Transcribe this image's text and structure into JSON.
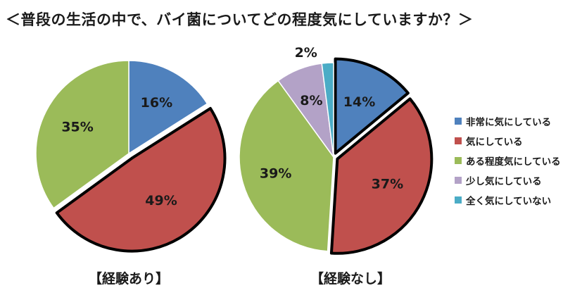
{
  "title": "＜普段の生活の中で、バイ菌についてどの程度気にしていますか？＞",
  "legend": [
    {
      "label": "非常に気にしている",
      "color": "#4f81bd"
    },
    {
      "label": "気にしている",
      "color": "#c0504d"
    },
    {
      "label": "ある程度気にしている",
      "color": "#9bbb59"
    },
    {
      "label": "少し気にしている",
      "color": "#b3a2c7"
    },
    {
      "label": "全く気にしていない",
      "color": "#4bacc6"
    }
  ],
  "chart_data": [
    {
      "type": "pie",
      "title": "【経験あり】",
      "categories": [
        "非常に気にしている",
        "気にしている",
        "ある程度気にしている"
      ],
      "values": [
        16,
        49,
        35
      ],
      "labels": [
        "16%",
        "49%",
        "35%"
      ],
      "colors": [
        "#4f81bd",
        "#c0504d",
        "#9bbb59"
      ],
      "exploded": [
        false,
        true,
        false
      ]
    },
    {
      "type": "pie",
      "title": "【経験なし】",
      "categories": [
        "非常に気にしている",
        "気にしている",
        "ある程度気にしている",
        "少し気にしている",
        "全く気にしていない"
      ],
      "values": [
        14,
        37,
        39,
        8,
        2
      ],
      "labels": [
        "14%",
        "37%",
        "39%",
        "8%",
        "2%"
      ],
      "colors": [
        "#4f81bd",
        "#c0504d",
        "#9bbb59",
        "#b3a2c7",
        "#4bacc6"
      ],
      "exploded": [
        true,
        true,
        false,
        false,
        false
      ]
    }
  ]
}
